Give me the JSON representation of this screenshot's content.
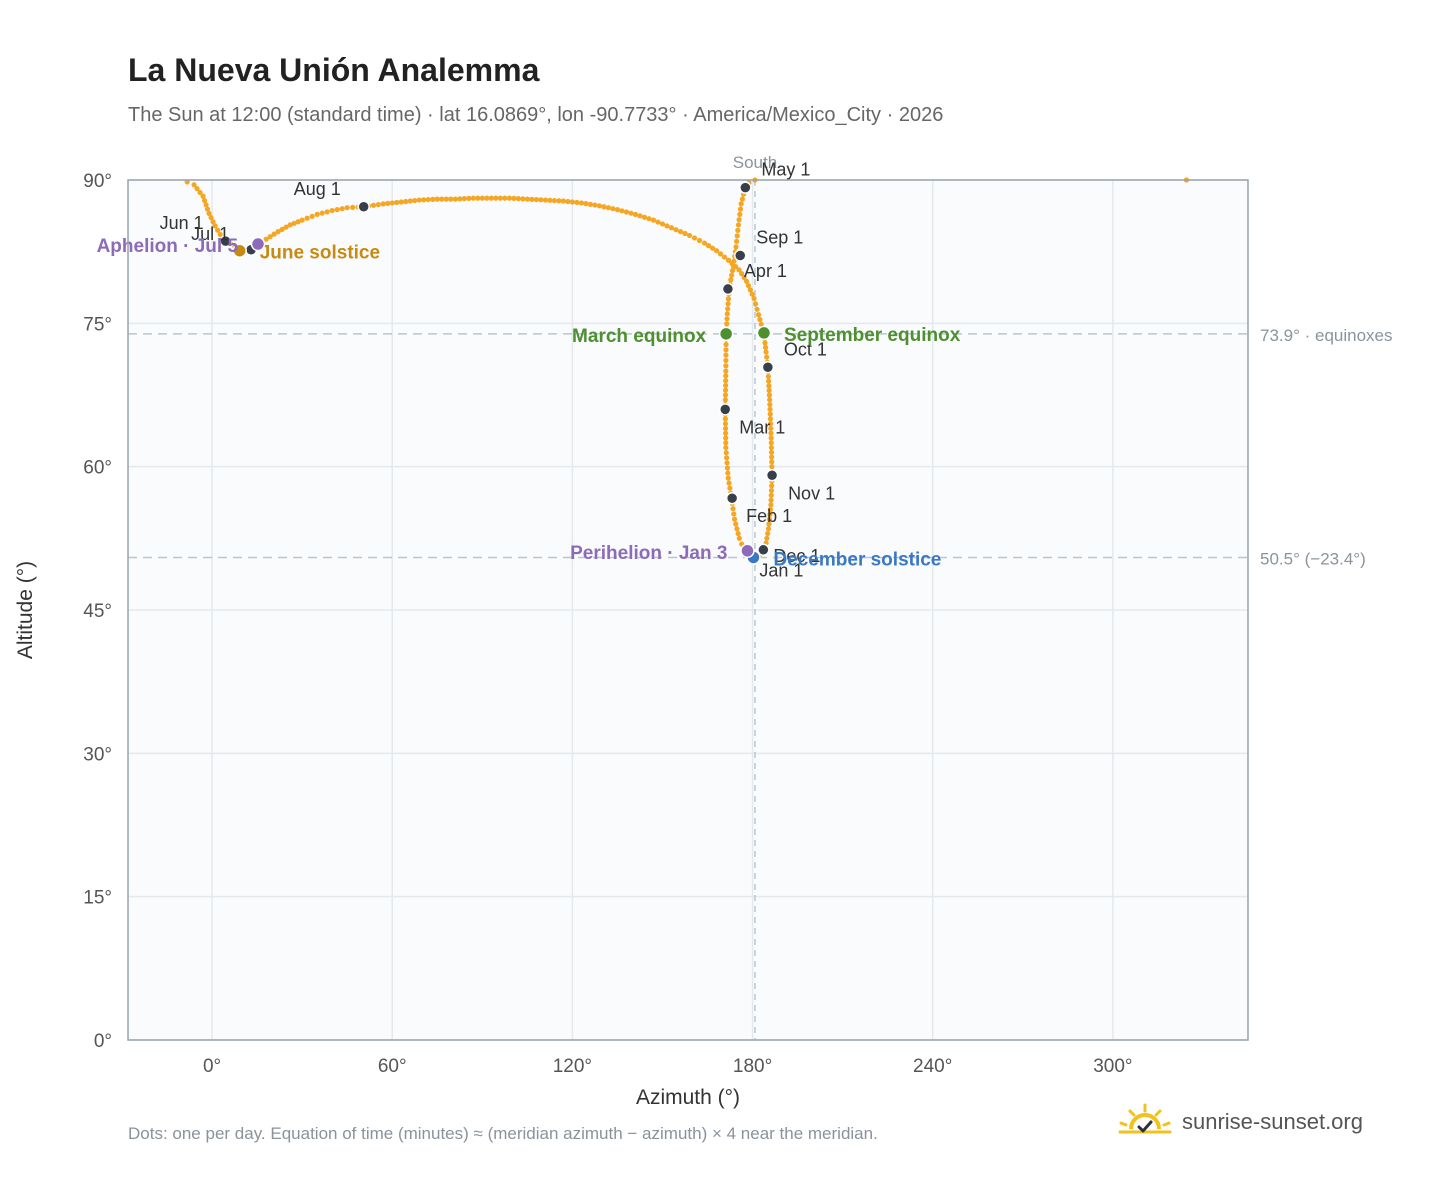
{
  "header": {
    "title": "La Nueva Unión Analemma",
    "subtitle": "The Sun at 12:00 (standard time) · lat 16.0869°, lon -90.7733° · America/Mexico_City · 2026"
  },
  "footer": {
    "note": "Dots: one per day. Equation of time (minutes) ≈ (meridian azimuth − azimuth) × 4 near the meridian.",
    "brand": "sunrise-sunset.org"
  },
  "colors": {
    "path": "#f5a623",
    "month_dot": "#37404a",
    "equinox": "#4e8f2f",
    "solstice_june": "#c98a12",
    "solstice_december": "#3a78c2",
    "apsis": "#8c6bb8",
    "guide": "#b9c6d0",
    "plot_bg": "#f9fbfd",
    "grid": "#e4e9ee",
    "frame": "#98a3ae"
  },
  "chart_data": {
    "type": "scatter",
    "xlabel": "Azimuth (°)",
    "ylabel": "Altitude (°)",
    "xlim": [
      -28,
      345
    ],
    "ylim": [
      0,
      90
    ],
    "x_ticks": [
      {
        "value": 0,
        "label": "0°"
      },
      {
        "value": 60,
        "label": "60°"
      },
      {
        "value": 120,
        "label": "120°"
      },
      {
        "value": 180,
        "label": "180°"
      },
      {
        "value": 240,
        "label": "240°"
      },
      {
        "value": 300,
        "label": "300°"
      }
    ],
    "y_ticks": [
      {
        "value": 0,
        "label": "0°"
      },
      {
        "value": 15,
        "label": "15°"
      },
      {
        "value": 30,
        "label": "30°"
      },
      {
        "value": 45,
        "label": "45°"
      },
      {
        "value": 60,
        "label": "60°"
      },
      {
        "value": 75,
        "label": "75°"
      },
      {
        "value": 90,
        "label": "90°"
      }
    ],
    "grid": true,
    "meridian": {
      "azimuth": 180.8,
      "label": "South"
    },
    "reference_lines": [
      {
        "altitude": 73.9,
        "label": "73.9° · equinoxes"
      },
      {
        "altitude": 50.5,
        "label": "50.5° (−23.4°)"
      }
    ],
    "daily_path": [
      [
        -8.3,
        89.8
      ],
      [
        -6,
        89.5
      ],
      [
        -3,
        88.3
      ],
      [
        -1,
        86.5
      ],
      [
        1,
        85.2
      ],
      [
        2.7,
        84.3
      ],
      [
        4,
        83.8
      ],
      [
        6,
        83.4
      ],
      [
        9.2,
        82.7
      ],
      [
        12,
        82.7
      ],
      [
        15.2,
        83.3
      ],
      [
        18,
        83.8
      ],
      [
        22,
        84.6
      ],
      [
        26,
        85.3
      ],
      [
        30,
        85.8
      ],
      [
        35,
        86.4
      ],
      [
        40,
        86.8
      ],
      [
        45,
        87.1
      ],
      [
        50.5,
        87.2
      ],
      [
        57,
        87.5
      ],
      [
        63,
        87.7
      ],
      [
        69,
        87.9
      ],
      [
        75,
        88.0
      ],
      [
        81,
        88.0
      ],
      [
        87,
        88.1
      ],
      [
        93,
        88.1
      ],
      [
        99,
        88.1
      ],
      [
        105,
        88.0
      ],
      [
        111,
        87.9
      ],
      [
        117,
        87.8
      ],
      [
        123,
        87.6
      ],
      [
        129,
        87.3
      ],
      [
        135,
        86.9
      ],
      [
        141,
        86.4
      ],
      [
        147,
        85.8
      ],
      [
        153,
        85.0
      ],
      [
        159,
        84.2
      ],
      [
        164,
        83.4
      ],
      [
        168,
        82.6
      ],
      [
        172,
        81.6
      ],
      [
        175.5,
        80.6
      ],
      [
        178,
        79.4
      ],
      [
        180.5,
        77.6
      ],
      [
        182,
        75.9
      ],
      [
        183.8,
        73.9
      ],
      [
        184.5,
        72.0
      ],
      [
        185.1,
        70.4
      ],
      [
        185.7,
        67.0
      ],
      [
        186.2,
        63.0
      ],
      [
        186.5,
        59.0
      ],
      [
        186.1,
        56.0
      ],
      [
        185.3,
        53.5
      ],
      [
        184.5,
        52.0
      ],
      [
        183.6,
        51.3
      ],
      [
        182.5,
        50.8
      ],
      [
        181.2,
        50.6
      ],
      [
        179.7,
        50.6
      ],
      [
        178.4,
        51.0
      ],
      [
        177.2,
        51.3
      ],
      [
        175.6,
        52.5
      ],
      [
        174.0,
        54.5
      ],
      [
        173.0,
        56.7
      ],
      [
        171.9,
        58.8
      ],
      [
        171.1,
        62.0
      ],
      [
        170.9,
        66.0
      ],
      [
        171.1,
        70.0
      ],
      [
        171.2,
        73.9
      ],
      [
        171.6,
        76.0
      ],
      [
        172.2,
        78.6
      ],
      [
        173.6,
        81.0
      ],
      [
        174.5,
        83.0
      ],
      [
        175.3,
        85.3
      ],
      [
        176.2,
        87.5
      ],
      [
        177.4,
        89.0
      ],
      [
        178.8,
        89.7
      ],
      [
        180.8,
        90.0
      ],
      [
        183,
        90.0
      ]
    ],
    "month_markers": [
      {
        "label": "Jan 1",
        "azimuth": 179.6,
        "altitude": 50.6,
        "dx": 8,
        "dy": 20
      },
      {
        "label": "Feb 1",
        "azimuth": 173.2,
        "altitude": 56.7,
        "dx": 14,
        "dy": 24
      },
      {
        "label": "Mar 1",
        "azimuth": 170.9,
        "altitude": 66.0,
        "dx": 14,
        "dy": 24
      },
      {
        "label": "Apr 1",
        "azimuth": 171.8,
        "altitude": 78.6,
        "dx": 16,
        "dy": -12
      },
      {
        "label": "May 1",
        "azimuth": 177.6,
        "altitude": 89.2,
        "dx": 16,
        "dy": -12
      },
      {
        "label": "Jun 1",
        "azimuth": 4.5,
        "altitude": 83.6,
        "dx": -66,
        "dy": -12
      },
      {
        "label": "Jul 1",
        "azimuth": 13.0,
        "altitude": 82.7,
        "dx": -60,
        "dy": -10
      },
      {
        "label": "Aug 1",
        "azimuth": 50.5,
        "altitude": 87.2,
        "dx": -70,
        "dy": -12
      },
      {
        "label": "Sep 1",
        "azimuth": 175.9,
        "altitude": 82.1,
        "dx": 16,
        "dy": -12
      },
      {
        "label": "Oct 1",
        "azimuth": 185.1,
        "altitude": 70.4,
        "dx": 16,
        "dy": -12
      },
      {
        "label": "Nov 1",
        "azimuth": 186.5,
        "altitude": 59.1,
        "dx": 16,
        "dy": 24
      },
      {
        "label": "Dec 1",
        "azimuth": 183.6,
        "altitude": 51.3,
        "dx": 10,
        "dy": 12
      }
    ],
    "events": [
      {
        "label": "March equinox",
        "azimuth": 171.2,
        "altitude": 73.9,
        "kind": "equinox",
        "anchor": "end",
        "dx": -20,
        "dy": 8
      },
      {
        "label": "September equinox",
        "azimuth": 183.8,
        "altitude": 74.0,
        "kind": "equinox",
        "anchor": "start",
        "dx": 20,
        "dy": 8
      },
      {
        "label": "June solstice",
        "azimuth": 9.2,
        "altitude": 82.6,
        "kind": "solstice_june",
        "anchor": "start",
        "dx": 20,
        "dy": 8
      },
      {
        "label": "December solstice",
        "azimuth": 180.3,
        "altitude": 50.5,
        "kind": "solstice_december",
        "anchor": "start",
        "dx": 20,
        "dy": 8
      },
      {
        "label": "Perihelion · Jan 3",
        "azimuth": 178.3,
        "altitude": 51.2,
        "kind": "apsis",
        "anchor": "end",
        "dx": -20,
        "dy": 8
      },
      {
        "label": "Aphelion · Jul 5",
        "azimuth": 15.3,
        "altitude": 83.3,
        "kind": "apsis",
        "anchor": "end",
        "dx": -20,
        "dy": 8
      }
    ],
    "stray_points": [
      [
        324.5,
        90.0
      ]
    ]
  }
}
